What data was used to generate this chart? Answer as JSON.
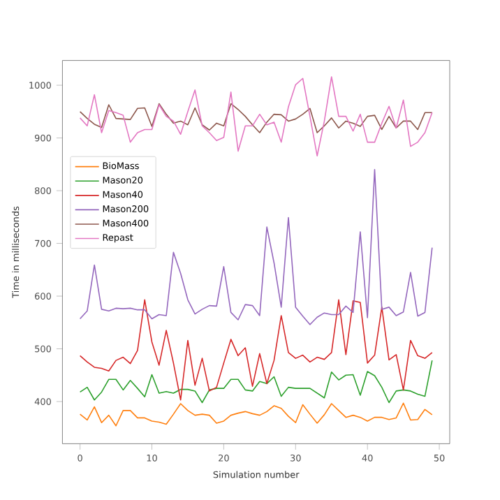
{
  "chart_data": {
    "type": "line",
    "xlabel": "Simulation number",
    "ylabel": "Time in milliseconds",
    "x": [
      0,
      1,
      2,
      3,
      4,
      5,
      6,
      7,
      8,
      9,
      10,
      11,
      12,
      13,
      14,
      15,
      16,
      17,
      18,
      19,
      20,
      21,
      22,
      23,
      24,
      25,
      26,
      27,
      28,
      29,
      30,
      31,
      32,
      33,
      34,
      35,
      36,
      37,
      38,
      39,
      40,
      41,
      42,
      43,
      44,
      45,
      46,
      47,
      48,
      49
    ],
    "xlim": [
      -2.45,
      51.45
    ],
    "xticks": [
      0,
      10,
      20,
      30,
      40,
      50
    ],
    "ylim": [
      320,
      1047
    ],
    "yticks": [
      400,
      500,
      600,
      700,
      800,
      900,
      1000
    ],
    "legend": "left",
    "grid": false,
    "marker": "none",
    "line_style": "solid",
    "series": [
      {
        "name": "BioMass",
        "color": "#ff7f0e",
        "values": [
          376,
          365,
          390,
          360,
          374,
          354,
          383,
          383,
          369,
          369,
          363,
          361,
          357,
          376,
          396,
          383,
          374,
          376,
          374,
          359,
          363,
          374,
          378,
          381,
          377,
          374,
          381,
          392,
          387,
          372,
          360,
          394,
          376,
          359,
          375,
          396,
          383,
          370,
          374,
          370,
          363,
          370,
          370,
          366,
          369,
          397,
          365,
          366,
          385,
          375
        ]
      },
      {
        "name": "Mason20",
        "color": "#2ca02c",
        "values": [
          418,
          427,
          403,
          418,
          442,
          442,
          422,
          440,
          425,
          409,
          451,
          416,
          419,
          416,
          423,
          423,
          420,
          398,
          422,
          425,
          425,
          442,
          442,
          422,
          420,
          438,
          434,
          447,
          410,
          427,
          425,
          425,
          425,
          416,
          407,
          456,
          441,
          450,
          451,
          412,
          457,
          449,
          427,
          398,
          420,
          422,
          420,
          414,
          410,
          478
        ]
      },
      {
        "name": "Mason40",
        "color": "#d62728",
        "values": [
          487,
          475,
          465,
          463,
          458,
          478,
          484,
          472,
          497,
          593,
          513,
          469,
          535,
          473,
          403,
          516,
          431,
          482,
          420,
          427,
          473,
          518,
          487,
          502,
          429,
          491,
          434,
          478,
          563,
          493,
          482,
          488,
          475,
          484,
          480,
          493,
          593,
          489,
          591,
          588,
          473,
          488,
          579,
          479,
          489,
          422,
          516,
          487,
          482,
          493
        ]
      },
      {
        "name": "Mason200",
        "color": "#9467bd",
        "values": [
          557,
          572,
          659,
          575,
          572,
          577,
          576,
          577,
          574,
          574,
          557,
          565,
          563,
          683,
          643,
          593,
          566,
          575,
          582,
          581,
          656,
          569,
          555,
          584,
          582,
          563,
          731,
          663,
          579,
          749,
          579,
          562,
          546,
          560,
          568,
          565,
          565,
          581,
          569,
          722,
          559,
          840,
          575,
          579,
          563,
          570,
          645,
          562,
          569,
          692
        ]
      },
      {
        "name": "Mason400",
        "color": "#8c564b",
        "values": [
          950,
          937,
          926,
          920,
          963,
          937,
          936,
          935,
          956,
          957,
          922,
          965,
          945,
          928,
          932,
          925,
          957,
          925,
          915,
          928,
          923,
          965,
          954,
          941,
          925,
          910,
          930,
          945,
          944,
          932,
          936,
          945,
          956,
          910,
          923,
          938,
          919,
          932,
          928,
          922,
          941,
          943,
          916,
          941,
          919,
          932,
          932,
          916,
          948,
          948
        ]
      },
      {
        "name": "Repast",
        "color": "#e377c2",
        "values": [
          938,
          923,
          982,
          910,
          952,
          948,
          943,
          892,
          910,
          916,
          916,
          963,
          941,
          932,
          907,
          950,
          991,
          923,
          910,
          895,
          901,
          987,
          875,
          923,
          923,
          945,
          925,
          930,
          892,
          959,
          1001,
          1013,
          941,
          866,
          932,
          1016,
          941,
          941,
          913,
          945,
          892,
          892,
          928,
          960,
          919,
          972,
          884,
          892,
          910,
          948
        ]
      }
    ]
  }
}
